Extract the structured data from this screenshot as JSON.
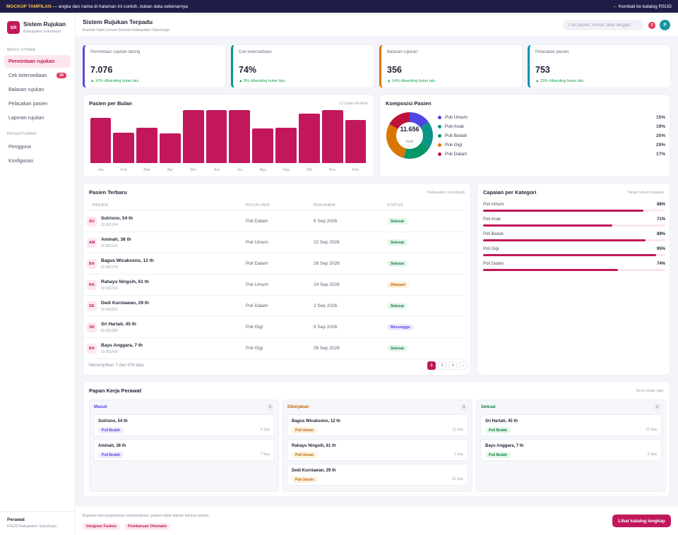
{
  "topbar": {
    "tag": "MOCKUP TAMPILAN",
    "notice": "— angka dan nama di halaman ini contoh, bukan data sebenarnya",
    "back": "← Kembali ke katalog RSUD"
  },
  "brand": {
    "logo": "SR",
    "title": "Sistem Rujukan",
    "subtitle": "Kabupaten Sukoharjo"
  },
  "sidebar": {
    "section_main": "MENU UTAMA",
    "nav_main": [
      {
        "label": "Permintaan rujukan",
        "active": true
      },
      {
        "label": "Cek ketersediaan",
        "badge": "18"
      },
      {
        "label": "Balasan rujukan"
      },
      {
        "label": "Pelacakan pasien"
      },
      {
        "label": "Laporan rujukan"
      }
    ],
    "section_settings": "PENGATURAN",
    "nav_settings": [
      {
        "label": "Pengguna"
      },
      {
        "label": "Konfigurasi"
      }
    ],
    "footer": {
      "name": "Perawat",
      "org": "RSUD Kabupaten Sukoharjo"
    }
  },
  "header": {
    "title": "Sistem Rujukan Terpadu",
    "subtitle": "Rumah Sakit Umum Daerah Kabupaten Sukoharjo",
    "search_placeholder": "Cari pasien, nomor, atau tanggal...",
    "notif_count": "3",
    "avatar": "P"
  },
  "stats": [
    {
      "label": "Permintaan rujukan daring",
      "value": "7.076",
      "delta": "▲ 10% dibanding bulan lalu",
      "accent": "#5b4bd6"
    },
    {
      "label": "Cek ketersediaan",
      "value": "74%",
      "delta": "▲ 3% dibanding bulan lalu",
      "accent": "#0d9488"
    },
    {
      "label": "Balasan rujukan",
      "value": "356",
      "delta": "▲ 14% dibanding bulan lalu",
      "accent": "#d97706"
    },
    {
      "label": "Pelacakan pasien",
      "value": "753",
      "delta": "▲ 15% dibanding bulan lalu",
      "accent": "#0891b2"
    }
  ],
  "chart_data": [
    {
      "type": "bar",
      "title": "Pasien per Bulan",
      "subtitle": "12 bulan terakhir",
      "categories": [
        "Jan",
        "Feb",
        "Mar",
        "Apr",
        "Mei",
        "Jun",
        "Jul",
        "Agu",
        "Sep",
        "Okt",
        "Nov",
        "Des"
      ],
      "values": [
        86,
        58,
        67,
        56,
        100,
        100,
        100,
        66,
        67,
        94,
        100,
        81
      ],
      "color": "#c2185b",
      "grid": false
    },
    {
      "type": "pie",
      "title": "Komposisi Pasien",
      "center_value": "11.656",
      "center_label": "total",
      "categories": [
        "Poli Umum",
        "Poli Anak",
        "Poli Bedah",
        "Poli Gigi",
        "Poli Dalam"
      ],
      "values": [
        15,
        19,
        20,
        29,
        17
      ],
      "value_labels": [
        "15%",
        "19%",
        "20%",
        "29%",
        "17%"
      ],
      "colors": [
        "#4f46e5",
        "#0d9488",
        "#059669",
        "#d97706",
        "#be123c"
      ]
    }
  ],
  "patients": {
    "title": "Pasien Terbaru",
    "meta": "Kabupaten Sukoharjo",
    "columns": [
      "PASIEN",
      "POLIKLINIK",
      "PENJAMIN",
      "STATUS"
    ],
    "rows": [
      {
        "ini": "SU",
        "name": "Sutrisno, 54 th",
        "id": "ID 001204",
        "poli": "Poli Dalam",
        "date": "6 Sep 2026",
        "status": "Selesai",
        "kind": "done"
      },
      {
        "ini": "AM",
        "name": "Aminah, 38 th",
        "id": "ID 001241",
        "poli": "Poli Umum",
        "date": "22 Sep 2026",
        "status": "Selesai",
        "kind": "done"
      },
      {
        "ini": "BA",
        "name": "Bagus Wicaksono, 12 th",
        "id": "ID 001278",
        "poli": "Poli Dalam",
        "date": "26 Sep 2026",
        "status": "Selesai",
        "kind": "done"
      },
      {
        "ini": "RA",
        "name": "Rahayu Ningsih, 61 th",
        "id": "ID 001315",
        "poli": "Poli Umum",
        "date": "24 Sep 2026",
        "status": "Dilayani",
        "kind": "serve"
      },
      {
        "ini": "DE",
        "name": "Dedi Kurniawan, 29 th",
        "id": "ID 001352",
        "poli": "Poli Dalam",
        "date": "2 Sep 2026",
        "status": "Selesai",
        "kind": "done"
      },
      {
        "ini": "SR",
        "name": "Sri Hartati, 45 th",
        "id": "ID 001389",
        "poli": "Poli Gigi",
        "date": "9 Sep 2026",
        "status": "Menunggu",
        "kind": "wait"
      },
      {
        "ini": "BA",
        "name": "Bayu Anggara, 7 th",
        "id": "ID 001426",
        "poli": "Poli Gigi",
        "date": "26 Sep 2026",
        "status": "Selesai",
        "kind": "done"
      }
    ],
    "footer": "Menampilkan 7 dari 476 data",
    "pages": [
      "1",
      "2",
      "3",
      "›"
    ]
  },
  "achievement": {
    "title": "Capaian per Kategori",
    "meta": "Target tahun berjalan",
    "items": [
      {
        "name": "Poli Umum",
        "label": "88%",
        "value": 0.88
      },
      {
        "name": "Poli Anak",
        "label": "71%",
        "value": 0.71
      },
      {
        "name": "Poli Bedah",
        "label": "89%",
        "value": 0.89
      },
      {
        "name": "Poli Gigi",
        "label": "95%",
        "value": 0.95
      },
      {
        "name": "Poli Dalam",
        "label": "74%",
        "value": 0.74
      }
    ]
  },
  "kanban": {
    "title": "Papan Kerja Perawat",
    "meta": "Seret antar lajur",
    "columns": [
      {
        "name": "Masuk",
        "count": "2",
        "color": "#4f46e5",
        "kind": "b",
        "cards": [
          {
            "name": "Sutrisno, 54 th",
            "tag": "Poli Bedah",
            "date": "6 Sep"
          },
          {
            "name": "Aminah, 38 th",
            "tag": "Poli Bedah",
            "date": "7 Sep"
          }
        ]
      },
      {
        "name": "Dikerjakan",
        "count": "3",
        "color": "#c2620b",
        "kind": "u",
        "cards": [
          {
            "name": "Bagus Wicaksono, 12 th",
            "tag": "Poli Umum",
            "date": "11 Sep"
          },
          {
            "name": "Rahayu Ningsih, 61 th",
            "tag": "Poli Umum",
            "date": "1 Sep"
          },
          {
            "name": "Dedi Kurniawan, 29 th",
            "tag": "Poli Umum",
            "date": "16 Sep"
          }
        ]
      },
      {
        "name": "Selesai",
        "count": "2",
        "color": "#15803d",
        "kind": "g",
        "cards": [
          {
            "name": "Sri Hartati, 45 th",
            "tag": "Poli Bedah",
            "date": "15 Sep"
          },
          {
            "name": "Bayu Anggara, 7 th",
            "tag": "Poli Bedah",
            "date": "5 Sep"
          }
        ]
      }
    ]
  },
  "footer": {
    "text": "Rujukan dari puskesmas terkoordinasi, pasien tidak ditolak karena penuh.",
    "tags": [
      "Integrasi Faskes",
      "Pembaruan Otomatis"
    ],
    "cta": "Lihat katalog lengkap"
  },
  "theme": {
    "primary": "#c2185b",
    "navy": "#1f1d47",
    "icons": [
      "hospital-logo",
      "notification-badge",
      "user-avatar"
    ]
  }
}
